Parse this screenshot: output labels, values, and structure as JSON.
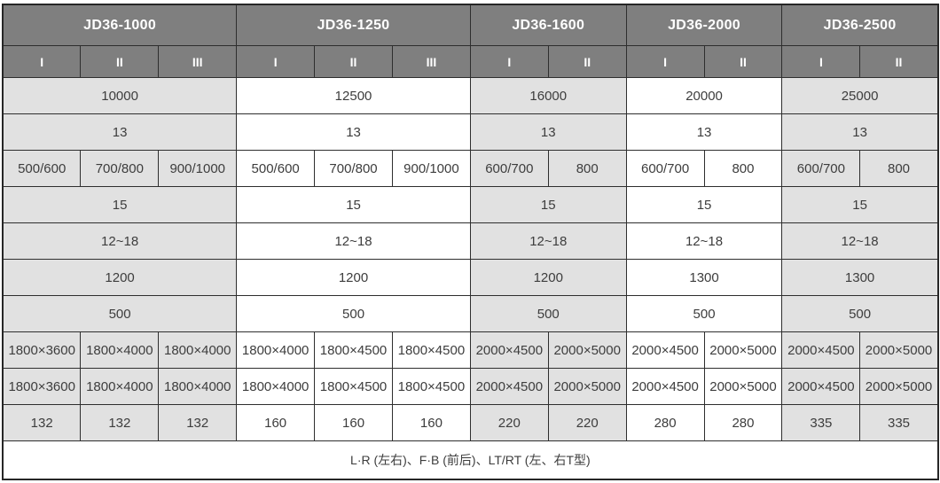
{
  "header": {
    "groups": [
      {
        "label": "JD36-1000",
        "subcolumns": [
          "I",
          "II",
          "III"
        ]
      },
      {
        "label": "JD36-1250",
        "subcolumns": [
          "I",
          "II",
          "III"
        ]
      },
      {
        "label": "JD36-1600",
        "subcolumns": [
          "I",
          "II"
        ]
      },
      {
        "label": "JD36-2000",
        "subcolumns": [
          "I",
          "II"
        ]
      },
      {
        "label": "JD36-2500",
        "subcolumns": [
          "I",
          "II"
        ]
      }
    ]
  },
  "rows": [
    {
      "cells": [
        "10000",
        "12500",
        "16000",
        "20000",
        "25000"
      ]
    },
    {
      "cells": [
        "13",
        "13",
        "13",
        "13",
        "13"
      ]
    },
    {
      "cells": [
        "500/600",
        "700/800",
        "900/1000",
        "500/600",
        "700/800",
        "900/1000",
        "600/700",
        "800",
        "600/700",
        "800",
        "600/700",
        "800"
      ]
    },
    {
      "cells": [
        "15",
        "15",
        "15",
        "15",
        "15"
      ]
    },
    {
      "cells": [
        "12~18",
        "12~18",
        "12~18",
        "12~18",
        "12~18"
      ]
    },
    {
      "cells": [
        "1200",
        "1200",
        "1200",
        "1300",
        "1300"
      ]
    },
    {
      "cells": [
        "500",
        "500",
        "500",
        "500",
        "500"
      ]
    },
    {
      "cells": [
        "1800×3600",
        "1800×4000",
        "1800×4000",
        "1800×4000",
        "1800×4500",
        "1800×4500",
        "2000×4500",
        "2000×5000",
        "2000×4500",
        "2000×5000",
        "2000×4500",
        "2000×5000"
      ]
    },
    {
      "cells": [
        "1800×3600",
        "1800×4000",
        "1800×4000",
        "1800×4000",
        "1800×4500",
        "1800×4500",
        "2000×4500",
        "2000×5000",
        "2000×4500",
        "2000×5000",
        "2000×4500",
        "2000×5000"
      ]
    },
    {
      "cells": [
        "132",
        "132",
        "132",
        "160",
        "160",
        "160",
        "220",
        "220",
        "280",
        "280",
        "335",
        "335"
      ]
    }
  ],
  "footer": {
    "text": "L·R (左右)、F·B (前后)、LT/RT (左、右T型)"
  },
  "colors": {
    "header_bg": "#7f7f7f",
    "header_text": "#ffffff",
    "shaded_cell_bg": "#e1e1e1",
    "white_cell_bg": "#ffffff",
    "border": "#2e2e2e",
    "cell_text": "#3d3d3d"
  }
}
